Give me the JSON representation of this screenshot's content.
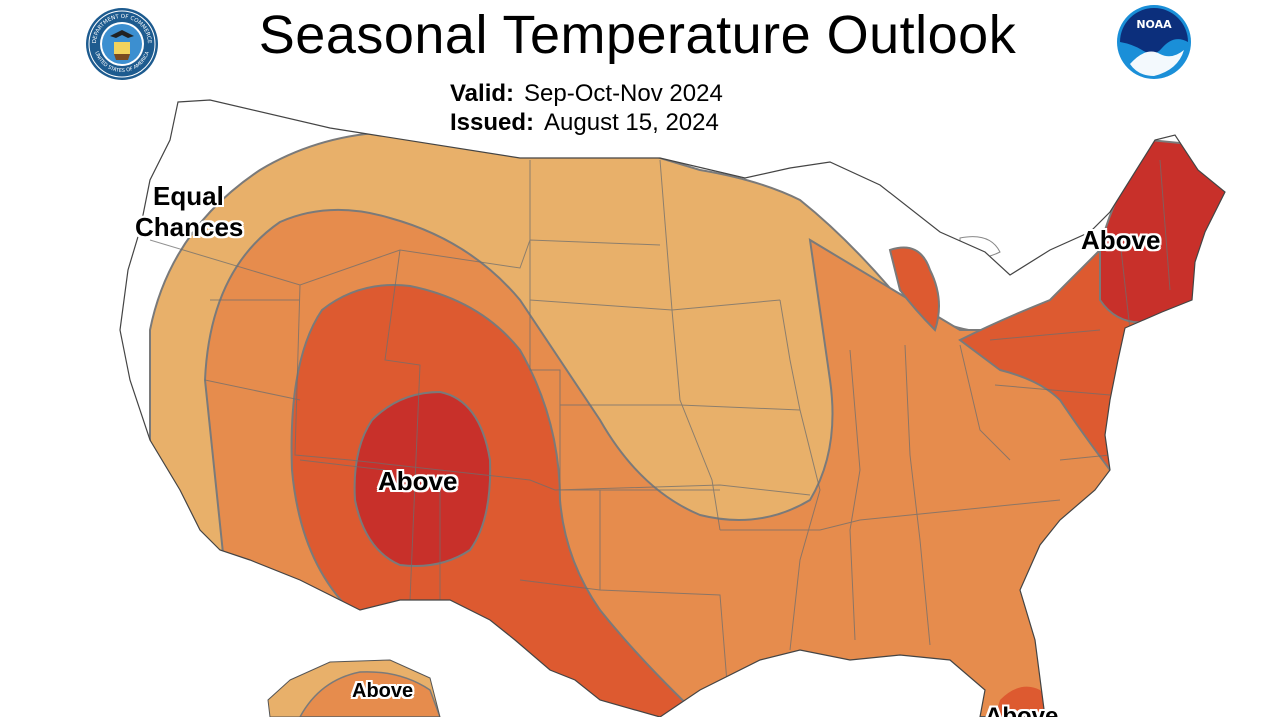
{
  "header": {
    "title": "Seasonal Temperature Outlook",
    "valid_label": "Valid:",
    "valid_value": "Sep-Oct-Nov 2024",
    "issued_label": "Issued:",
    "issued_value": "August 15, 2024"
  },
  "logos": {
    "left": "DEPARTMENT OF COMMERCE",
    "left_bottom": "UNITED STATES OF AMERICA",
    "right": "NOAA"
  },
  "regions": {
    "equal_chances_line1": "Equal",
    "equal_chances_line2": "Chances",
    "above_southwest": "Above",
    "above_northeast": "Above",
    "above_alaska": "Above",
    "above_florida": "Above"
  },
  "colors": {
    "ec": "#ffffff",
    "above_33": "#e8b06a",
    "above_40": "#e68c4d",
    "above_50": "#dd5a30",
    "above_60": "#c8302a",
    "contour": "#7a7a7a"
  }
}
